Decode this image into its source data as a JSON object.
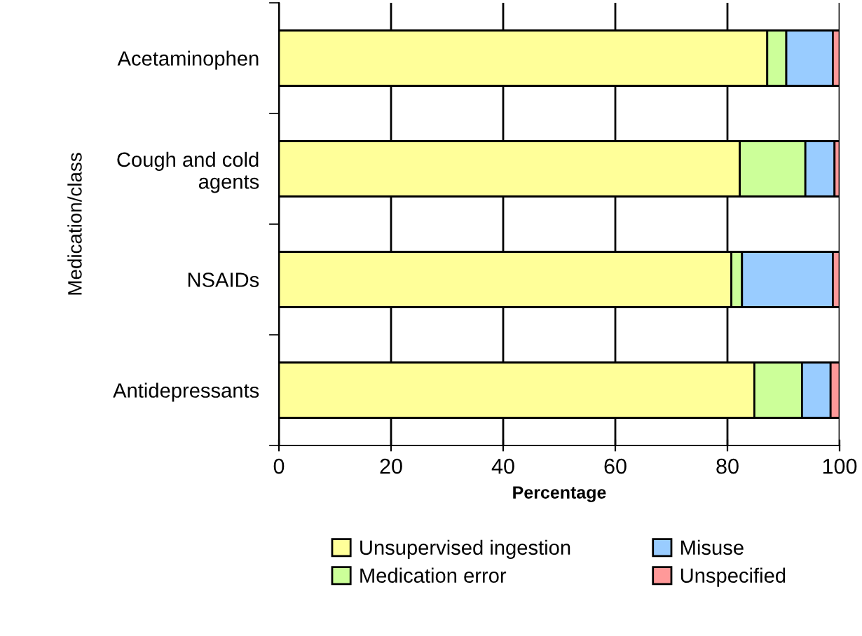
{
  "chart_data": {
    "type": "bar",
    "orientation": "horizontal",
    "stacked": true,
    "xlabel": "Percentage",
    "ylabel": "Medication/class",
    "categories": [
      "Acetaminophen",
      "Cough and cold\nagents",
      "NSAIDs",
      "Antidepressants"
    ],
    "series": [
      {
        "name": "Unsupervised ingestion",
        "color": "#ffff99",
        "values": [
          87.1,
          82.2,
          80.7,
          84.8
        ]
      },
      {
        "name": "Medication error",
        "color": "#ccff99",
        "values": [
          3.4,
          11.7,
          1.9,
          8.5
        ]
      },
      {
        "name": "Misuse",
        "color": "#99ccff",
        "values": [
          8.3,
          5.2,
          16.2,
          5.1
        ]
      },
      {
        "name": "Unspecified",
        "color": "#ff9999",
        "values": [
          1.2,
          0.9,
          1.2,
          1.6
        ]
      }
    ],
    "xlim": [
      0,
      100
    ],
    "xticks": [
      0,
      20,
      40,
      60,
      80,
      100
    ],
    "grid": "x",
    "legend": "bottom"
  }
}
